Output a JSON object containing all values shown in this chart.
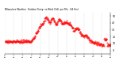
{
  "title": "Milwaukee Weather  Outdoor Temperature  vs Wind Chill  per Minute  (24 Hours)",
  "background_color": "#ffffff",
  "plot_bg_color": "#ffffff",
  "line_color": "#ff0000",
  "legend_temp_color": "#ff0000",
  "legend_windchill_color": "#0000ff",
  "ylim": [
    -5,
    55
  ],
  "yticks": [
    0,
    10,
    20,
    30,
    40,
    50
  ],
  "num_points": 1440,
  "seed": 42,
  "figsize": [
    1.6,
    0.87
  ],
  "dpi": 100
}
